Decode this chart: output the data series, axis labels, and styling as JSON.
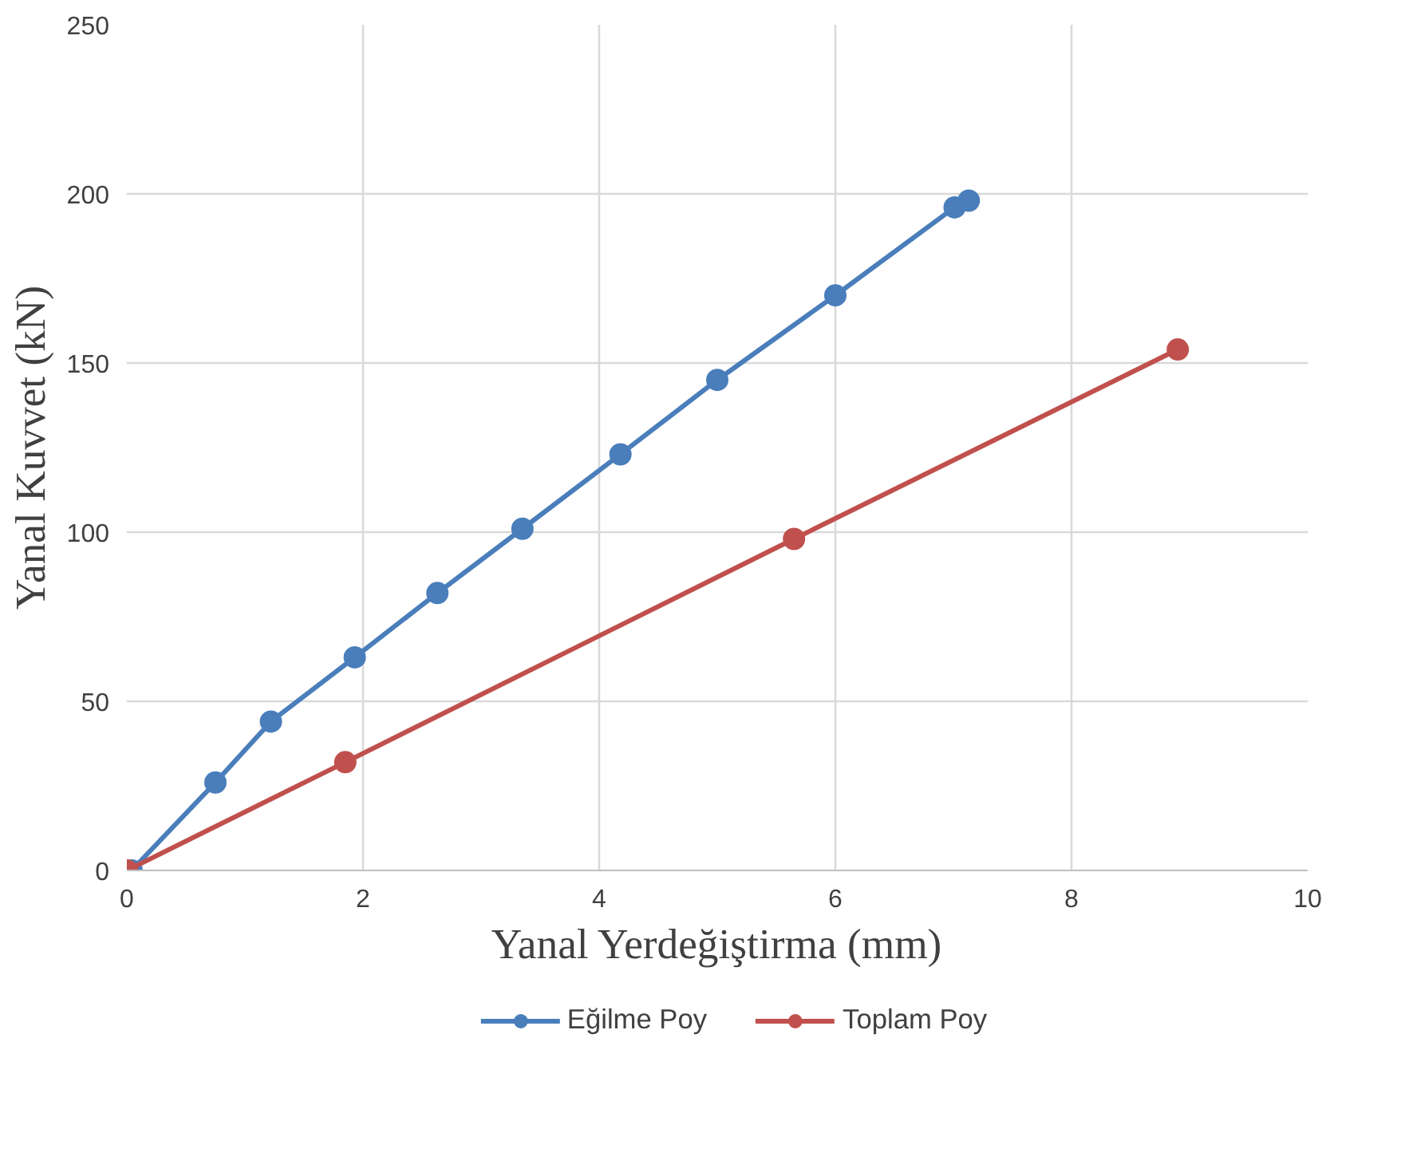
{
  "chart_data": {
    "type": "line",
    "xlabel": "Yanal Yerdeğiştirma (mm)",
    "ylabel": "Yanal Kuvvet (kN)",
    "xlim": [
      0,
      10
    ],
    "ylim": [
      0,
      250
    ],
    "xticks": [
      0,
      2,
      4,
      6,
      8,
      10
    ],
    "yticks": [
      0,
      50,
      100,
      150,
      200,
      250
    ],
    "grid": true,
    "legend": "bottom",
    "marker": "circle",
    "line_style": "solid",
    "series": [
      {
        "name": "Eğilme Poy",
        "color": "#4a7ebb",
        "x": [
          0.04,
          0.75,
          1.22,
          1.93,
          2.63,
          3.35,
          4.18,
          5.0,
          6.0,
          7.01,
          7.13
        ],
        "values": [
          0,
          26,
          44,
          63,
          82,
          101,
          123,
          145,
          170,
          196,
          198
        ]
      },
      {
        "name": "Toplam Poy",
        "color": "#c0504d",
        "x": [
          0,
          1.85,
          5.65,
          8.9
        ],
        "values": [
          0,
          32,
          98,
          154
        ]
      }
    ]
  }
}
